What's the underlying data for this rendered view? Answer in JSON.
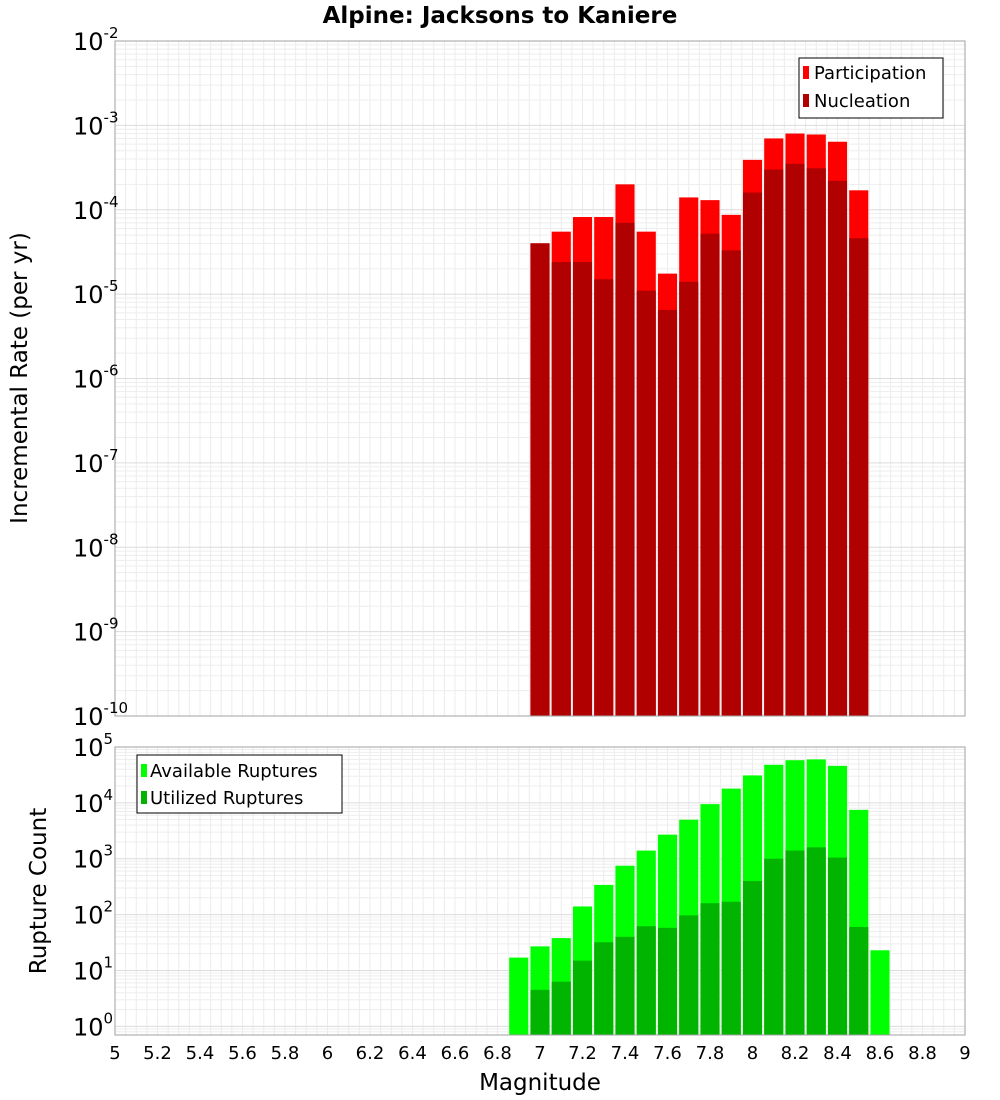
{
  "chart_data": [
    {
      "type": "bar",
      "title": "Alpine: Jacksons to Kaniere",
      "xlabel": "",
      "ylabel": "Incremental Rate (per yr)",
      "yscale": "log",
      "ylim": [
        1e-10,
        0.01
      ],
      "xlim": [
        5,
        9
      ],
      "grid": true,
      "legend_position": "top-right",
      "bar_width": 0.09,
      "x": [
        7.0,
        7.1,
        7.2,
        7.3,
        7.4,
        7.5,
        7.6,
        7.7,
        7.8,
        7.9,
        8.0,
        8.1,
        8.2,
        8.3,
        8.4,
        8.5
      ],
      "series": [
        {
          "name": "Participation",
          "color": "#ff0000",
          "values": [
            4e-05,
            5.5e-05,
            8.2e-05,
            8.2e-05,
            0.0002,
            5.5e-05,
            1.75e-05,
            0.00014,
            0.00013,
            8.7e-05,
            0.00039,
            0.0007,
            0.0008,
            0.00078,
            0.00064,
            0.00017
          ]
        },
        {
          "name": "Nucleation",
          "color": "#b00000",
          "values": [
            4e-05,
            2.4e-05,
            2.4e-05,
            1.5e-05,
            7e-05,
            1.1e-05,
            6.5e-06,
            1.4e-05,
            5.2e-05,
            3.3e-05,
            0.00016,
            0.0003,
            0.00035,
            0.00031,
            0.00022,
            4.6e-05
          ]
        }
      ]
    },
    {
      "type": "bar",
      "title": "",
      "xlabel": "Magnitude",
      "ylabel": "Rupture Count",
      "yscale": "log",
      "ylim": [
        0.7,
        100000.0
      ],
      "xlim": [
        5,
        9
      ],
      "grid": true,
      "legend_position": "top-left",
      "bar_width": 0.09,
      "x": [
        6.9,
        7.0,
        7.1,
        7.2,
        7.3,
        7.4,
        7.5,
        7.6,
        7.7,
        7.8,
        7.9,
        8.0,
        8.1,
        8.2,
        8.3,
        8.4,
        8.5,
        8.6
      ],
      "xticks": [
        "5",
        "5.2",
        "5.4",
        "5.6",
        "5.8",
        "6",
        "6.2",
        "6.4",
        "6.6",
        "6.8",
        "7",
        "7.2",
        "7.4",
        "7.6",
        "7.8",
        "8",
        "8.2",
        "8.4",
        "8.6",
        "8.8",
        "9"
      ],
      "series": [
        {
          "name": "Available Ruptures",
          "color": "#00ff00",
          "values": [
            17,
            27,
            38,
            140,
            340,
            750,
            1400,
            2700,
            5000,
            9500,
            18000,
            31000,
            48000,
            58000,
            60000,
            46000,
            7500,
            23
          ]
        },
        {
          "name": "Utilized Ruptures",
          "color": "#00b400",
          "values": [
            0,
            4.5,
            6.3,
            15,
            32,
            40,
            62,
            58,
            97,
            160,
            170,
            400,
            1000,
            1400,
            1600,
            1050,
            60,
            0
          ]
        }
      ]
    }
  ],
  "top_panel": {
    "yticks": [
      {
        "base": "10",
        "exp": "-2",
        "value": 0.01
      },
      {
        "base": "10",
        "exp": "-3",
        "value": 0.001
      },
      {
        "base": "10",
        "exp": "-4",
        "value": 0.0001
      },
      {
        "base": "10",
        "exp": "-5",
        "value": 1e-05
      },
      {
        "base": "10",
        "exp": "-6",
        "value": 1e-06
      },
      {
        "base": "10",
        "exp": "-7",
        "value": 1e-07
      },
      {
        "base": "10",
        "exp": "-8",
        "value": 1e-08
      },
      {
        "base": "10",
        "exp": "-9",
        "value": 1e-09
      },
      {
        "base": "10",
        "exp": "-10",
        "value": 1e-10
      }
    ]
  },
  "bottom_panel": {
    "yticks": [
      {
        "base": "10",
        "exp": "5",
        "value": 100000.0
      },
      {
        "base": "10",
        "exp": "4",
        "value": 10000.0
      },
      {
        "base": "10",
        "exp": "3",
        "value": 1000.0
      },
      {
        "base": "10",
        "exp": "2",
        "value": 100.0
      },
      {
        "base": "10",
        "exp": "1",
        "value": 10.0
      },
      {
        "base": "10",
        "exp": "0",
        "value": 1
      }
    ]
  }
}
